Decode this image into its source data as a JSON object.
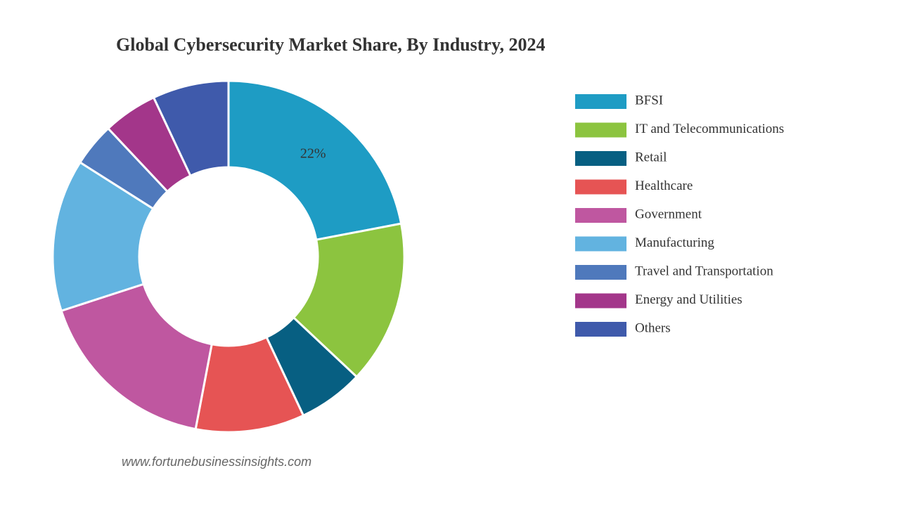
{
  "chart_data": {
    "type": "donut",
    "title": "Global Cybersecurity Market Share, By Industry, 2024",
    "categories": [
      "BFSI",
      "IT and Telecommunications",
      "Retail",
      "Healthcare",
      "Government",
      "Manufacturing",
      "Travel and Transportation",
      "Energy and Utilities",
      "Others"
    ],
    "values": [
      22,
      15,
      6,
      10,
      17,
      14,
      4,
      5,
      7
    ],
    "value_labels": [
      "22%",
      null,
      null,
      null,
      null,
      null,
      null,
      null,
      null
    ],
    "colors": [
      "#1e9cc4",
      "#8cc43f",
      "#075f82",
      "#e65454",
      "#bf57a0",
      "#62b3e0",
      "#4f79bc",
      "#a3368a",
      "#3f5aab"
    ],
    "legend": "right",
    "source": "www.fortunebusinessinsights.com"
  }
}
